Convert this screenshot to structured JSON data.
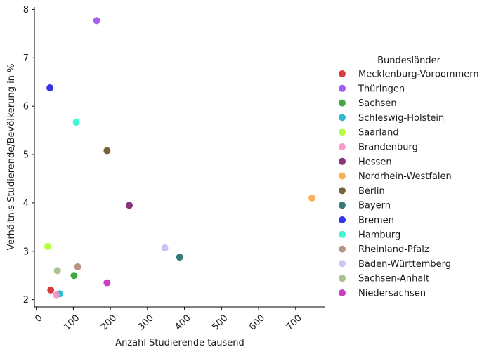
{
  "chart_data": {
    "type": "scatter",
    "title": "",
    "xlabel": "Anzahl Studierende tausend",
    "ylabel": "Verhältnis Studierende/Bevölkerung in %",
    "xlim": [
      -5,
      780
    ],
    "ylim": [
      1.85,
      8.05
    ],
    "xticks": [
      0,
      100,
      200,
      300,
      400,
      500,
      600,
      700
    ],
    "yticks": [
      2,
      3,
      4,
      5,
      6,
      7,
      8
    ],
    "grid": false,
    "legend": {
      "title": "Bundesländer",
      "placement": "right"
    },
    "series": [
      {
        "name": "Mecklenburg-Vorpommern",
        "color": "#d62728",
        "x": 39,
        "y": 2.2
      },
      {
        "name": "Thüringen",
        "color": "#9b4dee",
        "x": 163,
        "y": 7.77
      },
      {
        "name": "Sachsen",
        "color": "#2ca02c",
        "x": 102,
        "y": 2.5
      },
      {
        "name": "Schleswig-Holstein",
        "color": "#17b2cc",
        "x": 63,
        "y": 2.12
      },
      {
        "name": "Saarland",
        "color": "#adff2f",
        "x": 31,
        "y": 3.1
      },
      {
        "name": "Brandenburg",
        "color": "#f78fc8",
        "x": 54,
        "y": 2.1
      },
      {
        "name": "Hessen",
        "color": "#7a1f6a",
        "x": 251,
        "y": 3.95
      },
      {
        "name": "Nordrhein-Westfalen",
        "color": "#f9a94b",
        "x": 744,
        "y": 4.1
      },
      {
        "name": "Berlin",
        "color": "#6b5224",
        "x": 191,
        "y": 5.08
      },
      {
        "name": "Bayern",
        "color": "#1f6b6b",
        "x": 387,
        "y": 2.88
      },
      {
        "name": "Bremen",
        "color": "#1f1fe6",
        "x": 37,
        "y": 6.38
      },
      {
        "name": "Hamburg",
        "color": "#2ef5d0",
        "x": 108,
        "y": 5.67
      },
      {
        "name": "Rheinland-Pfalz",
        "color": "#b08878",
        "x": 112,
        "y": 2.68
      },
      {
        "name": "Baden-Württemberg",
        "color": "#c4bdf7",
        "x": 347,
        "y": 3.07
      },
      {
        "name": "Sachsen-Anhalt",
        "color": "#9fbd84",
        "x": 57,
        "y": 2.6
      },
      {
        "name": "Niedersachsen",
        "color": "#c42bbf",
        "x": 191,
        "y": 2.35
      }
    ]
  }
}
